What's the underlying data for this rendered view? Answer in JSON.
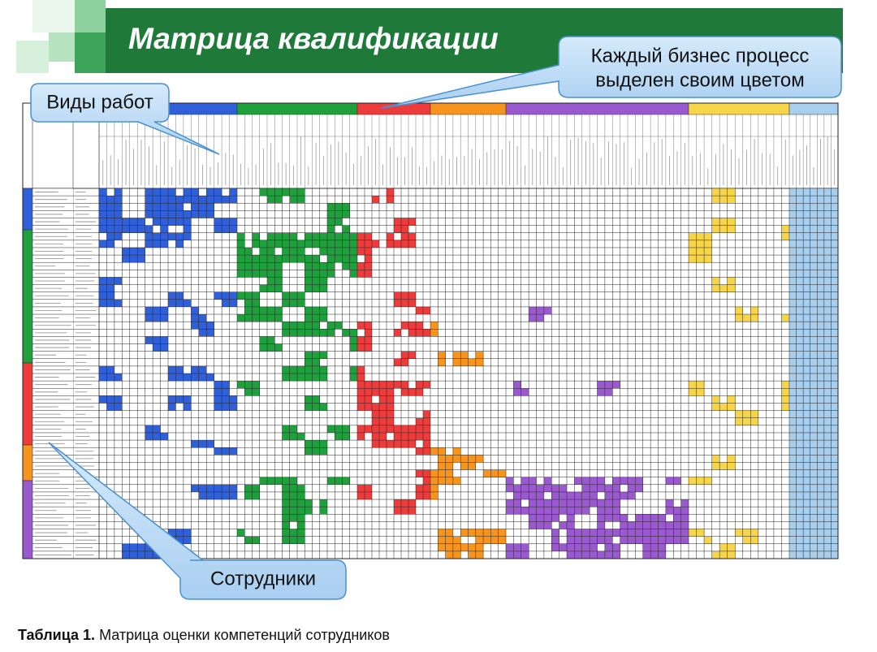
{
  "header": {
    "title": "Матрица квалификации"
  },
  "callouts": [
    {
      "lines": [
        "Каждый бизнес процесс",
        "выделен своим цветом"
      ]
    },
    {
      "lines": [
        "Виды работ"
      ]
    },
    {
      "lines": [
        "Сотрудники"
      ]
    }
  ],
  "caption": {
    "label": "Таблица 1.",
    "text": "Матрица оценки компетенций сотрудников"
  }
}
